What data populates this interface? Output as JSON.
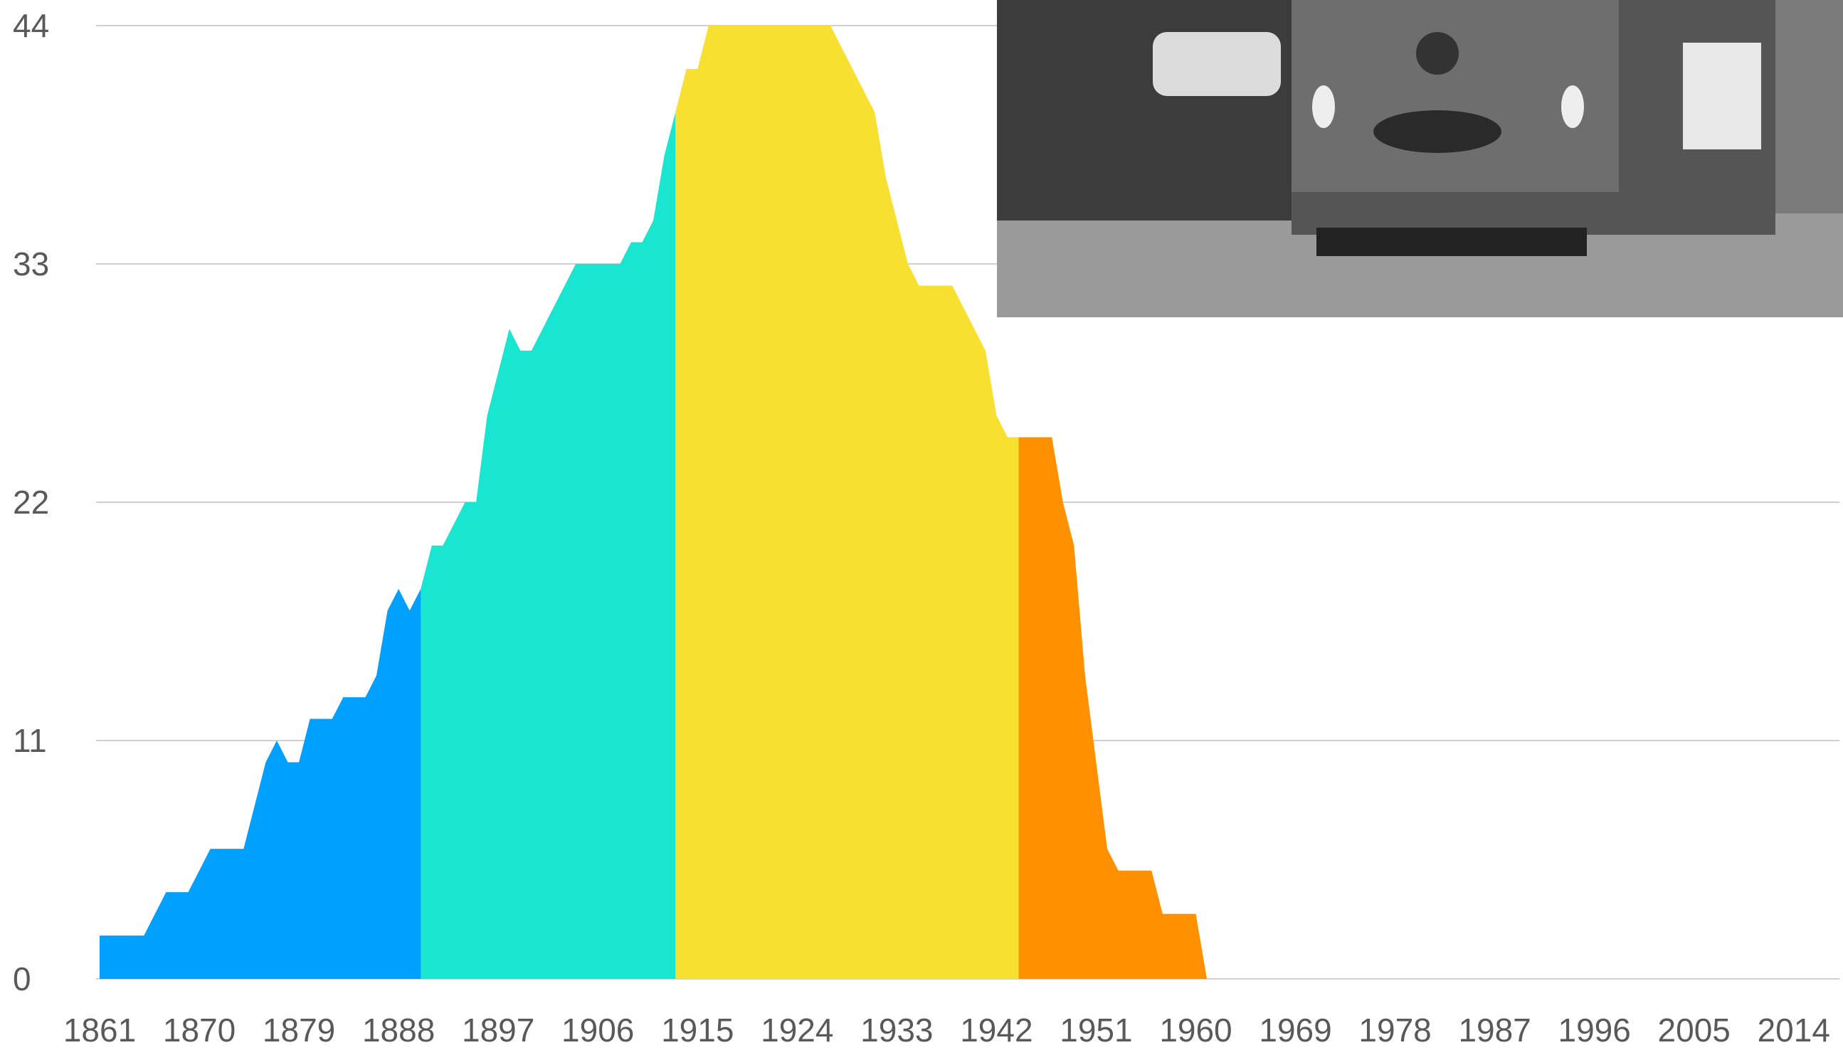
{
  "chart_data": {
    "type": "area",
    "xlim": [
      1861,
      2018
    ],
    "xticks": [
      1861,
      1870,
      1879,
      1888,
      1897,
      1906,
      1915,
      1924,
      1933,
      1942,
      1951,
      1960,
      1969,
      1978,
      1987,
      1996,
      2005,
      2014
    ],
    "ylim": [
      0,
      44
    ],
    "yticks": [
      0,
      11,
      22,
      33,
      44
    ],
    "grid": true,
    "series": [
      {
        "color": "#00a0ff",
        "x": [
          1861,
          1862,
          1863,
          1864,
          1865,
          1866,
          1867,
          1868,
          1869,
          1870,
          1871,
          1872,
          1873,
          1874,
          1875,
          1876,
          1877,
          1878,
          1879,
          1880,
          1881,
          1882,
          1883,
          1884,
          1885,
          1886,
          1887,
          1888,
          1889,
          1890
        ],
        "values": [
          2,
          2,
          2,
          2,
          2,
          3,
          4,
          4,
          4,
          5,
          6,
          6,
          6,
          6,
          8,
          10,
          11,
          10,
          10,
          12,
          12,
          12,
          13,
          13,
          13,
          14,
          17,
          18,
          17,
          18
        ]
      },
      {
        "color": "#18e6d0",
        "x": [
          1890,
          1891,
          1892,
          1893,
          1894,
          1895,
          1896,
          1897,
          1898,
          1899,
          1900,
          1901,
          1902,
          1903,
          1904,
          1905,
          1906,
          1907,
          1908,
          1909,
          1910,
          1911,
          1912,
          1913
        ],
        "values": [
          18,
          20,
          20,
          21,
          22,
          22,
          26,
          28,
          30,
          29,
          29,
          30,
          31,
          32,
          33,
          33,
          33,
          33,
          33,
          34,
          34,
          35,
          38,
          40
        ]
      },
      {
        "color": "#f7e030",
        "x": [
          1913,
          1914,
          1915,
          1916,
          1917,
          1918,
          1919,
          1920,
          1921,
          1922,
          1923,
          1924,
          1925,
          1926,
          1927,
          1928,
          1929,
          1930,
          1931,
          1932,
          1933,
          1934,
          1935,
          1936,
          1937,
          1938,
          1939,
          1940,
          1941,
          1942,
          1943,
          1944
        ],
        "values": [
          40,
          42,
          42,
          44,
          44,
          44,
          44,
          44,
          44,
          44,
          44,
          44,
          44,
          44,
          44,
          43,
          42,
          41,
          40,
          37,
          35,
          33,
          32,
          32,
          32,
          32,
          31,
          30,
          29,
          26,
          25,
          25
        ]
      },
      {
        "color": "#ff9000",
        "x": [
          1944,
          1945,
          1946,
          1947,
          1948,
          1949,
          1950,
          1951,
          1952,
          1953,
          1954,
          1955,
          1956,
          1957,
          1958,
          1959,
          1960
        ],
        "values": [
          25,
          25,
          25,
          25,
          22,
          20,
          14,
          10,
          6,
          5,
          5,
          5,
          5,
          3,
          3,
          3,
          3
        ]
      }
    ]
  }
}
